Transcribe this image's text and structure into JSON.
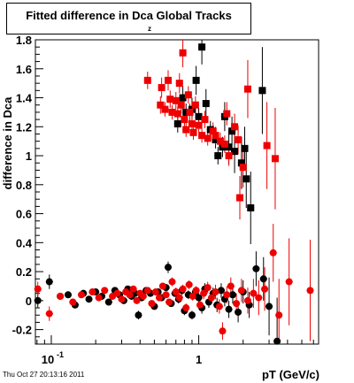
{
  "title": {
    "main": "Fitted difference in Dca  Global Tracks",
    "subscript": "z"
  },
  "timestamp": "Thu Oct 27 20:13:16 2011",
  "chart_data": {
    "type": "scatter",
    "title": "Fitted difference in Dca Global Tracks",
    "xlabel": "pT (GeV/c)",
    "ylabel": "difference in Dca",
    "xscale": "log",
    "xlim": [
      0.078,
      6.5
    ],
    "ylim": [
      -0.3,
      1.8
    ],
    "x_tick_labels": [
      {
        "value": 0.1,
        "text": "10-1"
      },
      {
        "value": 1,
        "text": "1"
      }
    ],
    "y_tick_labels": [
      "-0.2",
      "0",
      "0.2",
      "0.4",
      "0.6",
      "0.8",
      "1",
      "1.2",
      "1.4",
      "1.6",
      "1.8"
    ],
    "y_ticks": [
      -0.2,
      0,
      0.2,
      0.4,
      0.6,
      0.8,
      1,
      1.2,
      1.4,
      1.6,
      1.8
    ],
    "grid": false,
    "legend": false,
    "colors": {
      "black": "#000000",
      "red": "#ee0000"
    },
    "series": [
      {
        "color": "#000000",
        "marker": "square",
        "points": [
          {
            "x": 0.72,
            "y": 1.22,
            "err": 0.06
          },
          {
            "x": 0.78,
            "y": 1.4,
            "err": 0.08
          },
          {
            "x": 0.82,
            "y": 1.3,
            "err": 0.06
          },
          {
            "x": 0.9,
            "y": 1.32,
            "err": 0.08
          },
          {
            "x": 0.96,
            "y": 1.52,
            "err": 0.1
          },
          {
            "x": 1.0,
            "y": 1.27,
            "err": 0.06
          },
          {
            "x": 1.05,
            "y": 1.75,
            "err": 0.12
          },
          {
            "x": 1.12,
            "y": 1.36,
            "err": 0.1
          },
          {
            "x": 1.2,
            "y": 1.18,
            "err": 0.06
          },
          {
            "x": 1.3,
            "y": 1.11,
            "err": 0.06
          },
          {
            "x": 1.35,
            "y": 1.0,
            "err": 0.06
          },
          {
            "x": 1.45,
            "y": 1.06,
            "err": 0.07
          },
          {
            "x": 1.5,
            "y": 1.27,
            "err": 0.1
          },
          {
            "x": 1.6,
            "y": 1.06,
            "err": 0.12
          },
          {
            "x": 1.68,
            "y": 1.17,
            "err": 0.1
          },
          {
            "x": 1.75,
            "y": 1.03,
            "err": 0.15
          },
          {
            "x": 1.95,
            "y": 0.95,
            "err": 0.18
          },
          {
            "x": 2.05,
            "y": 1.05,
            "err": 0.15
          },
          {
            "x": 2.1,
            "y": 0.84,
            "err": 0.2
          },
          {
            "x": 2.25,
            "y": 0.64,
            "err": 0.25
          },
          {
            "x": 2.7,
            "y": 1.45,
            "err": 0.3
          }
        ]
      },
      {
        "color": "#ee0000",
        "marker": "square",
        "points": [
          {
            "x": 0.45,
            "y": 1.52,
            "err": 0.06
          },
          {
            "x": 0.55,
            "y": 1.35,
            "err": 0.06
          },
          {
            "x": 0.56,
            "y": 1.47,
            "err": 0.07
          },
          {
            "x": 0.59,
            "y": 1.32,
            "err": 0.05
          },
          {
            "x": 0.62,
            "y": 1.52,
            "err": 0.07
          },
          {
            "x": 0.64,
            "y": 1.39,
            "err": 0.06
          },
          {
            "x": 0.66,
            "y": 1.3,
            "err": 0.05
          },
          {
            "x": 0.7,
            "y": 1.38,
            "err": 0.06
          },
          {
            "x": 0.72,
            "y": 1.29,
            "err": 0.05
          },
          {
            "x": 0.74,
            "y": 1.5,
            "err": 0.07
          },
          {
            "x": 0.76,
            "y": 1.35,
            "err": 0.06
          },
          {
            "x": 0.78,
            "y": 1.71,
            "err": 0.1
          },
          {
            "x": 0.8,
            "y": 1.25,
            "err": 0.05
          },
          {
            "x": 0.82,
            "y": 1.18,
            "err": 0.05
          },
          {
            "x": 0.85,
            "y": 1.42,
            "err": 0.06
          },
          {
            "x": 0.87,
            "y": 1.3,
            "err": 0.06
          },
          {
            "x": 0.9,
            "y": 1.22,
            "err": 0.05
          },
          {
            "x": 0.92,
            "y": 1.16,
            "err": 0.05
          },
          {
            "x": 0.95,
            "y": 1.35,
            "err": 0.06
          },
          {
            "x": 1.0,
            "y": 1.21,
            "err": 0.05
          },
          {
            "x": 1.05,
            "y": 1.14,
            "err": 0.05
          },
          {
            "x": 1.1,
            "y": 1.25,
            "err": 0.06
          },
          {
            "x": 1.15,
            "y": 1.12,
            "err": 0.05
          },
          {
            "x": 1.25,
            "y": 1.17,
            "err": 0.06
          },
          {
            "x": 1.3,
            "y": 1.14,
            "err": 0.06
          },
          {
            "x": 1.4,
            "y": 1.1,
            "err": 0.06
          },
          {
            "x": 1.5,
            "y": 1.08,
            "err": 0.06
          },
          {
            "x": 1.55,
            "y": 1.29,
            "err": 0.08
          },
          {
            "x": 1.6,
            "y": 1.0,
            "err": 0.07
          },
          {
            "x": 1.75,
            "y": 1.2,
            "err": 0.09
          },
          {
            "x": 1.85,
            "y": 1.11,
            "err": 0.1
          },
          {
            "x": 1.9,
            "y": 0.71,
            "err": 0.15
          },
          {
            "x": 2.0,
            "y": 0.92,
            "err": 0.14
          },
          {
            "x": 2.15,
            "y": 1.46,
            "err": 0.2
          },
          {
            "x": 2.9,
            "y": 1.07,
            "err": 0.3
          },
          {
            "x": 3.3,
            "y": 0.98,
            "err": 0.35
          }
        ]
      },
      {
        "color": "#000000",
        "marker": "circle",
        "points": [
          {
            "x": 0.081,
            "y": 0.0,
            "err": 0.05
          },
          {
            "x": 0.097,
            "y": 0.13,
            "err": 0.05
          },
          {
            "x": 0.115,
            "y": 0.03,
            "err": 0.02
          },
          {
            "x": 0.13,
            "y": 0.04,
            "err": 0.02
          },
          {
            "x": 0.145,
            "y": -0.03,
            "err": 0.02
          },
          {
            "x": 0.165,
            "y": 0.05,
            "err": 0.02
          },
          {
            "x": 0.18,
            "y": 0.01,
            "err": 0.02
          },
          {
            "x": 0.2,
            "y": 0.06,
            "err": 0.02
          },
          {
            "x": 0.22,
            "y": 0.03,
            "err": 0.02
          },
          {
            "x": 0.245,
            "y": -0.01,
            "err": 0.02
          },
          {
            "x": 0.27,
            "y": 0.07,
            "err": 0.02
          },
          {
            "x": 0.29,
            "y": 0.04,
            "err": 0.02
          },
          {
            "x": 0.31,
            "y": 0.0,
            "err": 0.02
          },
          {
            "x": 0.33,
            "y": 0.08,
            "err": 0.02
          },
          {
            "x": 0.35,
            "y": 0.03,
            "err": 0.02
          },
          {
            "x": 0.37,
            "y": 0.05,
            "err": 0.02
          },
          {
            "x": 0.39,
            "y": -0.1,
            "err": 0.03
          },
          {
            "x": 0.41,
            "y": 0.02,
            "err": 0.02
          },
          {
            "x": 0.44,
            "y": 0.07,
            "err": 0.02
          },
          {
            "x": 0.47,
            "y": 0.05,
            "err": 0.02
          },
          {
            "x": 0.5,
            "y": -0.04,
            "err": 0.02
          },
          {
            "x": 0.53,
            "y": 0.06,
            "err": 0.02
          },
          {
            "x": 0.56,
            "y": 0.02,
            "err": 0.02
          },
          {
            "x": 0.6,
            "y": 0.09,
            "err": 0.02
          },
          {
            "x": 0.62,
            "y": 0.23,
            "err": 0.04
          },
          {
            "x": 0.65,
            "y": -0.02,
            "err": 0.02
          },
          {
            "x": 0.69,
            "y": 0.05,
            "err": 0.02
          },
          {
            "x": 0.73,
            "y": 0.01,
            "err": 0.03
          },
          {
            "x": 0.77,
            "y": 0.07,
            "err": 0.03
          },
          {
            "x": 0.8,
            "y": -0.07,
            "err": 0.03
          },
          {
            "x": 0.85,
            "y": 0.04,
            "err": 0.03
          },
          {
            "x": 0.9,
            "y": -0.1,
            "err": 0.03
          },
          {
            "x": 0.95,
            "y": 0.06,
            "err": 0.03
          },
          {
            "x": 1.0,
            "y": 0.02,
            "err": 0.03
          },
          {
            "x": 1.05,
            "y": -0.05,
            "err": 0.04
          },
          {
            "x": 1.1,
            "y": 0.08,
            "err": 0.04
          },
          {
            "x": 1.17,
            "y": -0.01,
            "err": 0.04
          },
          {
            "x": 1.25,
            "y": 0.05,
            "err": 0.04
          },
          {
            "x": 1.33,
            "y": -0.03,
            "err": 0.05
          },
          {
            "x": 1.42,
            "y": 0.07,
            "err": 0.05
          },
          {
            "x": 1.5,
            "y": 0.01,
            "err": 0.05
          },
          {
            "x": 1.6,
            "y": -0.06,
            "err": 0.06
          },
          {
            "x": 1.7,
            "y": 0.04,
            "err": 0.06
          },
          {
            "x": 1.85,
            "y": -0.08,
            "err": 0.07
          },
          {
            "x": 2.0,
            "y": 0.06,
            "err": 0.08
          },
          {
            "x": 2.2,
            "y": -0.03,
            "err": 0.09
          },
          {
            "x": 2.45,
            "y": 0.22,
            "err": 0.12
          },
          {
            "x": 2.75,
            "y": 0.15,
            "err": 0.15
          },
          {
            "x": 3.0,
            "y": -0.04,
            "err": 0.2
          },
          {
            "x": 3.4,
            "y": -0.28,
            "err": 0.3
          }
        ]
      },
      {
        "color": "#ee0000",
        "marker": "circle",
        "points": [
          {
            "x": 0.081,
            "y": 0.08,
            "err": 0.05
          },
          {
            "x": 0.097,
            "y": -0.09,
            "err": 0.05
          },
          {
            "x": 0.115,
            "y": 0.03,
            "err": 0.02
          },
          {
            "x": 0.14,
            "y": -0.01,
            "err": 0.02
          },
          {
            "x": 0.16,
            "y": 0.04,
            "err": 0.02
          },
          {
            "x": 0.19,
            "y": 0.06,
            "err": 0.02
          },
          {
            "x": 0.21,
            "y": 0.02,
            "err": 0.02
          },
          {
            "x": 0.23,
            "y": 0.07,
            "err": 0.02
          },
          {
            "x": 0.26,
            "y": 0.03,
            "err": 0.02
          },
          {
            "x": 0.28,
            "y": 0.05,
            "err": 0.02
          },
          {
            "x": 0.3,
            "y": 0.01,
            "err": 0.02
          },
          {
            "x": 0.32,
            "y": 0.06,
            "err": 0.02
          },
          {
            "x": 0.34,
            "y": 0.04,
            "err": 0.02
          },
          {
            "x": 0.36,
            "y": 0.08,
            "err": 0.02
          },
          {
            "x": 0.38,
            "y": 0.0,
            "err": 0.02
          },
          {
            "x": 0.4,
            "y": 0.05,
            "err": 0.02
          },
          {
            "x": 0.42,
            "y": 0.03,
            "err": 0.02
          },
          {
            "x": 0.45,
            "y": 0.07,
            "err": 0.02
          },
          {
            "x": 0.48,
            "y": -0.02,
            "err": 0.02
          },
          {
            "x": 0.51,
            "y": 0.06,
            "err": 0.02
          },
          {
            "x": 0.54,
            "y": 0.02,
            "err": 0.02
          },
          {
            "x": 0.57,
            "y": 0.1,
            "err": 0.02
          },
          {
            "x": 0.6,
            "y": 0.04,
            "err": 0.02
          },
          {
            "x": 0.63,
            "y": -0.01,
            "err": 0.02
          },
          {
            "x": 0.66,
            "y": 0.13,
            "err": 0.03
          },
          {
            "x": 0.7,
            "y": 0.06,
            "err": 0.03
          },
          {
            "x": 0.74,
            "y": 0.02,
            "err": 0.03
          },
          {
            "x": 0.78,
            "y": 0.08,
            "err": 0.03
          },
          {
            "x": 0.82,
            "y": -0.05,
            "err": 0.03
          },
          {
            "x": 0.86,
            "y": 0.11,
            "err": 0.03
          },
          {
            "x": 0.91,
            "y": 0.03,
            "err": 0.03
          },
          {
            "x": 0.96,
            "y": 0.07,
            "err": 0.03
          },
          {
            "x": 1.02,
            "y": -0.03,
            "err": 0.04
          },
          {
            "x": 1.08,
            "y": 0.05,
            "err": 0.04
          },
          {
            "x": 1.15,
            "y": 0.09,
            "err": 0.04
          },
          {
            "x": 1.22,
            "y": 0.02,
            "err": 0.04
          },
          {
            "x": 1.3,
            "y": 0.06,
            "err": 0.05
          },
          {
            "x": 1.38,
            "y": -0.04,
            "err": 0.05
          },
          {
            "x": 1.45,
            "y": -0.21,
            "err": 0.06
          },
          {
            "x": 1.55,
            "y": 0.04,
            "err": 0.06
          },
          {
            "x": 1.65,
            "y": 0.1,
            "err": 0.06
          },
          {
            "x": 1.8,
            "y": -0.02,
            "err": 0.07
          },
          {
            "x": 1.95,
            "y": 0.07,
            "err": 0.08
          },
          {
            "x": 2.15,
            "y": 0.0,
            "err": 0.09
          },
          {
            "x": 2.35,
            "y": 0.05,
            "err": 0.1
          },
          {
            "x": 2.55,
            "y": 0.02,
            "err": 0.12
          },
          {
            "x": 2.8,
            "y": 0.08,
            "err": 0.15
          },
          {
            "x": 3.2,
            "y": 0.33,
            "err": 0.2
          },
          {
            "x": 3.5,
            "y": -0.1,
            "err": 0.25
          },
          {
            "x": 4.1,
            "y": 0.13,
            "err": 0.3
          },
          {
            "x": 5.7,
            "y": 0.07,
            "err": 0.35
          }
        ]
      }
    ]
  }
}
